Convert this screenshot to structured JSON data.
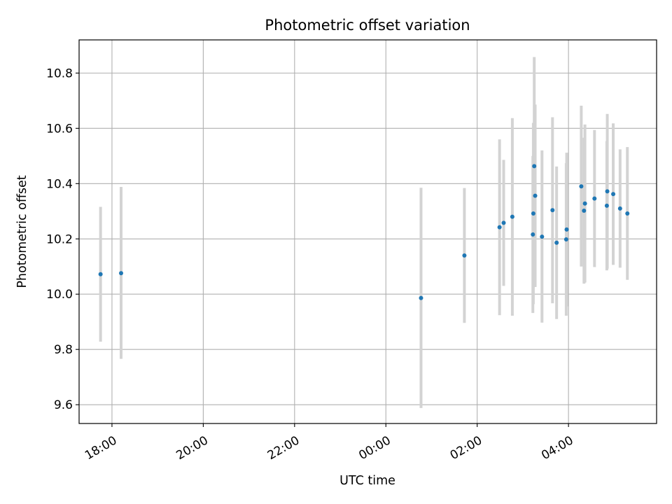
{
  "chart_data": {
    "type": "scatter",
    "title": "Photometric offset variation",
    "xlabel": "UTC time",
    "ylabel": "Photometric offset",
    "xlim_hours": [
      17.28,
      29.93
    ],
    "ylim": [
      9.532,
      10.92
    ],
    "grid": true,
    "colors": {
      "point": "#1f77b4",
      "errorbar": "#d3d3d3",
      "grid": "#b0b0b0"
    },
    "x_ticks": [
      {
        "hours": 18,
        "label": "18:00"
      },
      {
        "hours": 20,
        "label": "20:00"
      },
      {
        "hours": 22,
        "label": "22:00"
      },
      {
        "hours": 24,
        "label": "00:00"
      },
      {
        "hours": 26,
        "label": "02:00"
      },
      {
        "hours": 28,
        "label": "04:00"
      }
    ],
    "y_ticks": [
      {
        "value": 9.6,
        "label": "9.6"
      },
      {
        "value": 9.8,
        "label": "9.8"
      },
      {
        "value": 10.0,
        "label": "10.0"
      },
      {
        "value": 10.2,
        "label": "10.2"
      },
      {
        "value": 10.4,
        "label": "10.4"
      },
      {
        "value": 10.6,
        "label": "10.6"
      },
      {
        "value": 10.8,
        "label": "10.8"
      }
    ],
    "points": [
      {
        "x": 17.75,
        "y": 10.072,
        "lo": 9.828,
        "hi": 10.316
      },
      {
        "x": 18.2,
        "y": 10.076,
        "lo": 9.766,
        "hi": 10.388
      },
      {
        "x": 24.77,
        "y": 9.986,
        "lo": 9.588,
        "hi": 10.385
      },
      {
        "x": 25.72,
        "y": 10.14,
        "lo": 9.896,
        "hi": 10.384
      },
      {
        "x": 26.49,
        "y": 10.242,
        "lo": 9.924,
        "hi": 10.56
      },
      {
        "x": 26.58,
        "y": 10.258,
        "lo": 10.03,
        "hi": 10.486
      },
      {
        "x": 26.77,
        "y": 10.28,
        "lo": 9.922,
        "hi": 10.637
      },
      {
        "x": 27.22,
        "y": 10.216,
        "lo": 9.932,
        "hi": 10.5
      },
      {
        "x": 27.23,
        "y": 10.292,
        "lo": 9.964,
        "hi": 10.62
      },
      {
        "x": 27.25,
        "y": 10.463,
        "lo": 10.066,
        "hi": 10.858
      },
      {
        "x": 27.27,
        "y": 10.356,
        "lo": 10.026,
        "hi": 10.686
      },
      {
        "x": 27.42,
        "y": 10.208,
        "lo": 9.897,
        "hi": 10.52
      },
      {
        "x": 27.65,
        "y": 10.304,
        "lo": 9.967,
        "hi": 10.64
      },
      {
        "x": 27.74,
        "y": 10.186,
        "lo": 9.91,
        "hi": 10.462
      },
      {
        "x": 27.96,
        "y": 10.234,
        "lo": 9.956,
        "hi": 10.512
      },
      {
        "x": 27.95,
        "y": 10.198,
        "lo": 9.922,
        "hi": 10.474
      },
      {
        "x": 28.28,
        "y": 10.39,
        "lo": 10.1,
        "hi": 10.682
      },
      {
        "x": 28.34,
        "y": 10.302,
        "lo": 10.038,
        "hi": 10.566
      },
      {
        "x": 28.36,
        "y": 10.328,
        "lo": 10.042,
        "hi": 10.614
      },
      {
        "x": 28.57,
        "y": 10.346,
        "lo": 10.098,
        "hi": 10.594
      },
      {
        "x": 28.84,
        "y": 10.32,
        "lo": 10.086,
        "hi": 10.554
      },
      {
        "x": 28.85,
        "y": 10.372,
        "lo": 10.092,
        "hi": 10.652
      },
      {
        "x": 28.98,
        "y": 10.362,
        "lo": 10.106,
        "hi": 10.618
      },
      {
        "x": 29.13,
        "y": 10.31,
        "lo": 10.096,
        "hi": 10.524
      },
      {
        "x": 29.29,
        "y": 10.292,
        "lo": 10.052,
        "hi": 10.532
      }
    ]
  }
}
